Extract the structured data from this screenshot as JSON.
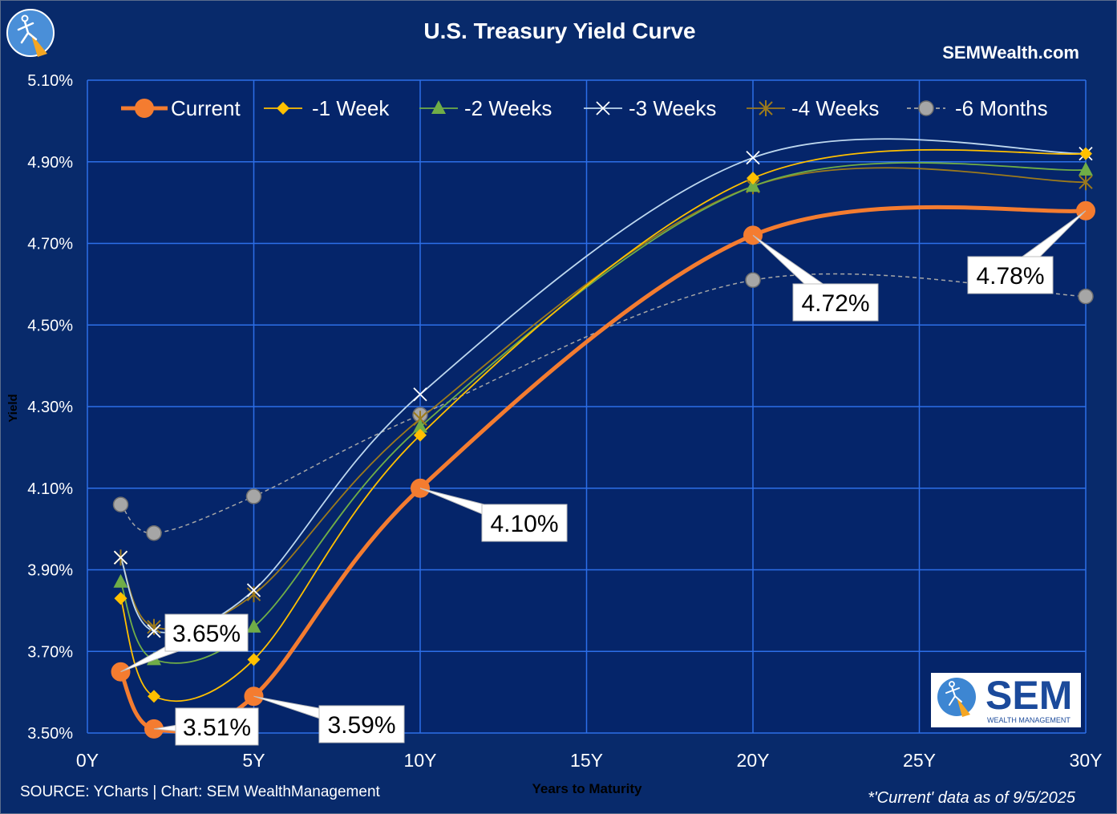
{
  "title": "U.S. Treasury Yield Curve",
  "website": "SEMWealth.com",
  "source_note": "SOURCE: YCharts | Chart: SEM WealthManagement",
  "as_of_note": "*'Current' data as of 9/5/2025",
  "logo": {
    "icon": "runner-compass-icon",
    "text": "SEM",
    "subtext": "WEALTH MANAGEMENT"
  },
  "chart_data": {
    "type": "line",
    "title": "U.S. Treasury Yield Curve",
    "xlabel": "Years to Maturity",
    "ylabel": "Yield",
    "xlim": [
      0,
      30
    ],
    "ylim": [
      3.5,
      5.1
    ],
    "x_ticks": [
      0,
      5,
      10,
      15,
      20,
      25,
      30
    ],
    "x_tick_labels": [
      "0Y",
      "5Y",
      "10Y",
      "15Y",
      "20Y",
      "25Y",
      "30Y"
    ],
    "y_ticks": [
      3.5,
      3.7,
      3.9,
      4.1,
      4.3,
      4.5,
      4.7,
      4.9,
      5.1
    ],
    "y_tick_labels": [
      "3.50%",
      "3.70%",
      "3.90%",
      "4.10%",
      "4.30%",
      "4.50%",
      "4.70%",
      "4.90%",
      "5.10%"
    ],
    "grid": true,
    "legend_position": "top",
    "series": [
      {
        "name": "Current",
        "color": "#f47c30",
        "marker": "circle",
        "dash": "solid",
        "x": [
          1,
          2,
          5,
          10,
          20,
          30
        ],
        "values": [
          3.65,
          3.51,
          3.59,
          4.1,
          4.72,
          4.78
        ]
      },
      {
        "name": "-1 Week",
        "color": "#ffc000",
        "marker": "diamond",
        "dash": "solid",
        "x": [
          1,
          2,
          5,
          10,
          20,
          30
        ],
        "values": [
          3.83,
          3.59,
          3.68,
          4.23,
          4.86,
          4.92
        ]
      },
      {
        "name": "-2 Weeks",
        "color": "#70ad47",
        "marker": "triangle",
        "dash": "solid",
        "x": [
          1,
          2,
          5,
          10,
          20,
          30
        ],
        "values": [
          3.87,
          3.68,
          3.76,
          4.25,
          4.84,
          4.88
        ]
      },
      {
        "name": "-3 Weeks",
        "color": "#bdd7ee",
        "marker": "x",
        "dash": "solid",
        "x": [
          1,
          2,
          5,
          10,
          20,
          30
        ],
        "values": [
          3.93,
          3.75,
          3.85,
          4.33,
          4.91,
          4.92
        ]
      },
      {
        "name": "-4 Weeks",
        "color": "#9c7a1c",
        "marker": "star",
        "dash": "solid",
        "x": [
          1,
          2,
          5,
          10,
          20,
          30
        ],
        "values": [
          3.93,
          3.76,
          3.84,
          4.27,
          4.84,
          4.85
        ]
      },
      {
        "name": "-6 Months",
        "color": "#a6a6a6",
        "marker": "circle-gray",
        "dash": "dashed",
        "x": [
          1,
          2,
          5,
          10,
          20,
          30
        ],
        "values": [
          4.06,
          3.99,
          4.08,
          4.28,
          4.61,
          4.57
        ]
      }
    ],
    "annotations": [
      {
        "text": "3.65%",
        "x": 1,
        "y": 3.65
      },
      {
        "text": "3.51%",
        "x": 2,
        "y": 3.51
      },
      {
        "text": "3.59%",
        "x": 5,
        "y": 3.59
      },
      {
        "text": "4.10%",
        "x": 10,
        "y": 4.1
      },
      {
        "text": "4.72%",
        "x": 20,
        "y": 4.72
      },
      {
        "text": "4.78%",
        "x": 30,
        "y": 4.78
      }
    ]
  }
}
